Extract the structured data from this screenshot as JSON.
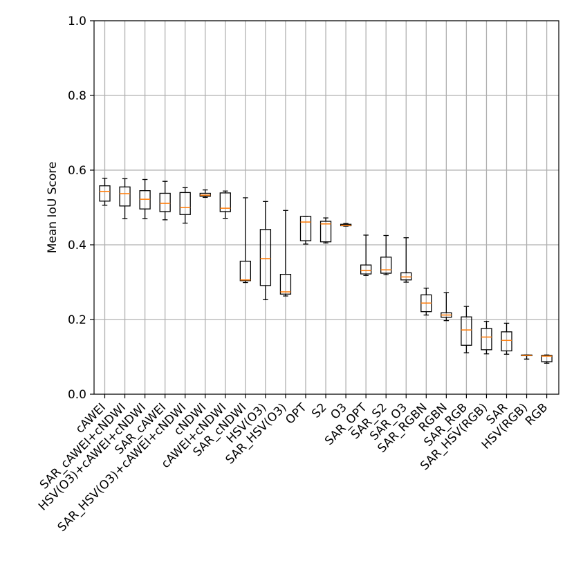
{
  "chart_data": {
    "type": "boxplot",
    "title": "",
    "xlabel": "",
    "ylabel": "Mean IoU Score",
    "ylim": [
      0.0,
      1.0
    ],
    "yticks": [
      "0.0",
      "0.2",
      "0.4",
      "0.6",
      "0.8",
      "1.0"
    ],
    "grid": true,
    "colors": {
      "box": "#000000",
      "median": "#ff7f0e",
      "grid": "#b0b0b0"
    },
    "categories": [
      "cAWEI",
      "SAR_cAWEI+cNDWI",
      "HSV(O3)+cAWEI+cNDWI",
      "SAR_cAWEI",
      "SAR_HSV(O3)+cAWEI+cNDWI",
      "cNDWI",
      "cAWEI+cNDWI",
      "SAR_cNDWI",
      "HSV(O3)",
      "SAR_HSV(O3)",
      "OPT",
      "S2",
      "O3",
      "SAR_OPT",
      "SAR_S2",
      "SAR_O3",
      "SAR_RGBN",
      "RGBN",
      "SAR_RGB",
      "SAR_HSV(RGB)",
      "SAR",
      "HSV(RGB)",
      "RGB"
    ],
    "boxes": [
      {
        "whislo": 0.506,
        "q1": 0.517,
        "med": 0.543,
        "q3": 0.558,
        "whishi": 0.578
      },
      {
        "whislo": 0.47,
        "q1": 0.504,
        "med": 0.537,
        "q3": 0.555,
        "whishi": 0.577
      },
      {
        "whislo": 0.47,
        "q1": 0.496,
        "med": 0.522,
        "q3": 0.545,
        "whishi": 0.575
      },
      {
        "whislo": 0.467,
        "q1": 0.489,
        "med": 0.511,
        "q3": 0.538,
        "whishi": 0.57
      },
      {
        "whislo": 0.458,
        "q1": 0.481,
        "med": 0.5,
        "q3": 0.54,
        "whishi": 0.553
      },
      {
        "whislo": 0.527,
        "q1": 0.53,
        "med": 0.533,
        "q3": 0.538,
        "whishi": 0.547
      },
      {
        "whislo": 0.471,
        "q1": 0.489,
        "med": 0.498,
        "q3": 0.539,
        "whishi": 0.544
      },
      {
        "whislo": 0.299,
        "q1": 0.304,
        "med": 0.306,
        "q3": 0.356,
        "whishi": 0.526
      },
      {
        "whislo": 0.253,
        "q1": 0.291,
        "med": 0.363,
        "q3": 0.441,
        "whishi": 0.516
      },
      {
        "whislo": 0.263,
        "q1": 0.268,
        "med": 0.274,
        "q3": 0.321,
        "whishi": 0.492
      },
      {
        "whislo": 0.402,
        "q1": 0.411,
        "med": 0.461,
        "q3": 0.476,
        "whishi": 0.476
      },
      {
        "whislo": 0.405,
        "q1": 0.408,
        "med": 0.456,
        "q3": 0.463,
        "whishi": 0.472
      },
      {
        "whislo": 0.45,
        "q1": 0.451,
        "med": 0.452,
        "q3": 0.455,
        "whishi": 0.457
      },
      {
        "whislo": 0.318,
        "q1": 0.322,
        "med": 0.331,
        "q3": 0.346,
        "whishi": 0.426
      },
      {
        "whislo": 0.32,
        "q1": 0.324,
        "med": 0.333,
        "q3": 0.367,
        "whishi": 0.425
      },
      {
        "whislo": 0.3,
        "q1": 0.306,
        "med": 0.314,
        "q3": 0.325,
        "whishi": 0.419
      },
      {
        "whislo": 0.212,
        "q1": 0.221,
        "med": 0.244,
        "q3": 0.266,
        "whishi": 0.284
      },
      {
        "whislo": 0.197,
        "q1": 0.206,
        "med": 0.212,
        "q3": 0.218,
        "whishi": 0.272
      },
      {
        "whislo": 0.111,
        "q1": 0.131,
        "med": 0.172,
        "q3": 0.207,
        "whishi": 0.235
      },
      {
        "whislo": 0.108,
        "q1": 0.119,
        "med": 0.153,
        "q3": 0.176,
        "whishi": 0.195
      },
      {
        "whislo": 0.107,
        "q1": 0.116,
        "med": 0.144,
        "q3": 0.167,
        "whishi": 0.19
      },
      {
        "whislo": 0.094,
        "q1": 0.103,
        "med": 0.104,
        "q3": 0.105,
        "whishi": 0.105
      },
      {
        "whislo": 0.083,
        "q1": 0.087,
        "med": 0.102,
        "q3": 0.104,
        "whishi": 0.105
      }
    ]
  }
}
